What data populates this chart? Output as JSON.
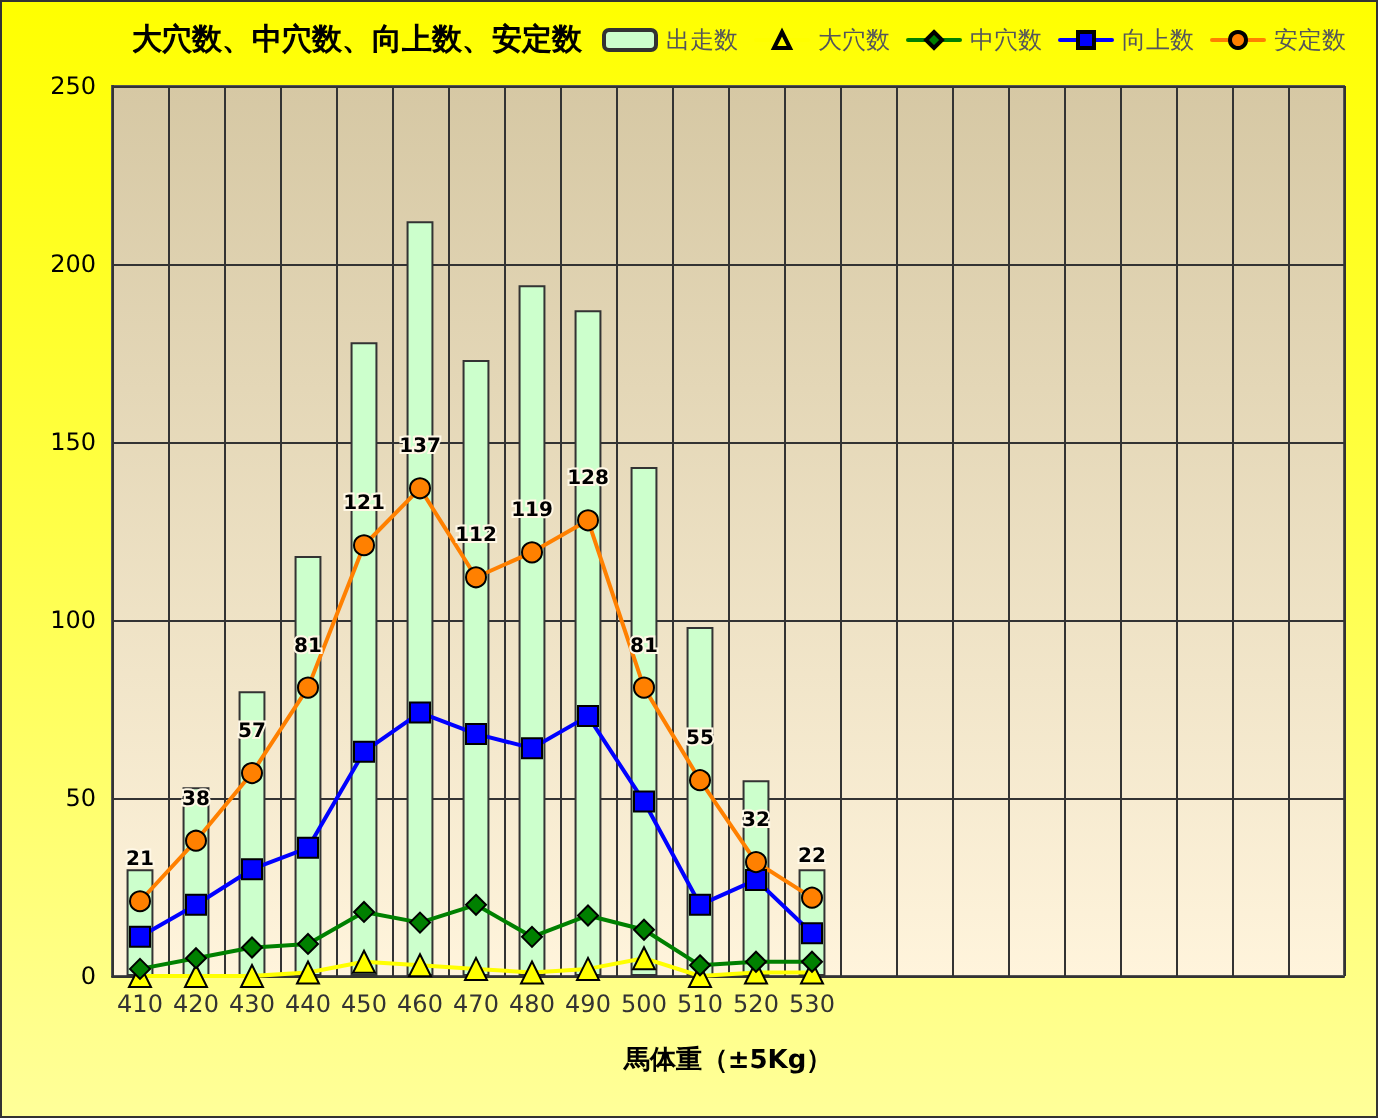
{
  "chart_data": {
    "type": "bar",
    "title": "大穴数、中穴数、向上数、安定数",
    "xlabel": "馬体重（±5Kg）",
    "categories": [
      "410",
      "420",
      "430",
      "440",
      "450",
      "460",
      "470",
      "480",
      "490",
      "500",
      "510",
      "520",
      "530",
      null,
      null,
      null,
      null,
      null,
      null,
      null,
      null,
      null
    ],
    "series": [
      {
        "name": "出走数",
        "color": "#ccffcc",
        "values": [
          30,
          53,
          80,
          118,
          178,
          212,
          173,
          194,
          187,
          143,
          98,
          55,
          30,
          null,
          null,
          null,
          null,
          null,
          null,
          null,
          null,
          null
        ]
      },
      {
        "name": "大穴数",
        "type": "line",
        "marker": "triangle",
        "color": "#ffff00",
        "values": [
          0,
          0,
          0,
          1,
          4,
          3,
          2,
          1,
          2,
          5,
          0,
          1,
          1,
          null,
          null,
          null,
          null,
          null,
          null,
          null,
          null,
          null
        ]
      },
      {
        "name": "中穴数",
        "type": "line",
        "marker": "diamond",
        "color": "#008000",
        "values": [
          2,
          5,
          8,
          9,
          18,
          15,
          20,
          11,
          17,
          13,
          3,
          4,
          4,
          null,
          null,
          null,
          null,
          null,
          null,
          null,
          null,
          null
        ]
      },
      {
        "name": "向上数",
        "type": "line",
        "marker": "square",
        "color": "#0000ff",
        "values": [
          11,
          20,
          30,
          36,
          63,
          74,
          68,
          64,
          73,
          49,
          20,
          27,
          12,
          null,
          null,
          null,
          null,
          null,
          null,
          null,
          null,
          null
        ]
      },
      {
        "name": "安定数",
        "type": "line",
        "marker": "circle",
        "color": "#ff8000",
        "values": [
          21,
          38,
          57,
          81,
          121,
          137,
          112,
          119,
          128,
          81,
          55,
          32,
          22,
          null,
          null,
          null,
          null,
          null,
          null,
          null,
          null,
          null
        ],
        "value_labels": [
          "21",
          "38",
          "57",
          "81",
          "121",
          "137",
          "112",
          "119",
          "128",
          "81",
          "55",
          "32",
          "22",
          null,
          null,
          null,
          null,
          null,
          null,
          null,
          null,
          null
        ]
      }
    ],
    "ylim": [
      0,
      250
    ],
    "yticks": [
      0,
      50,
      100,
      150,
      200,
      250
    ],
    "grid": true,
    "legend": "top right"
  }
}
